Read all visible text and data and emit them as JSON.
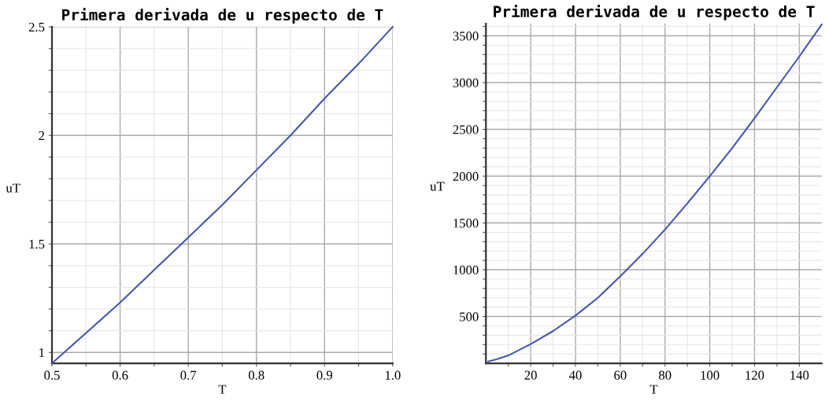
{
  "chart_data": [
    {
      "type": "line",
      "title": "Primera derivada de u respecto de T",
      "xlabel": "T",
      "ylabel": "uT",
      "x": [
        0.5,
        0.55,
        0.6,
        0.65,
        0.7,
        0.75,
        0.8,
        0.85,
        0.9,
        0.95,
        1.0
      ],
      "series": [
        {
          "color": "#4455b0",
          "values": [
            0.95,
            1.09,
            1.23,
            1.38,
            1.53,
            1.68,
            1.84,
            2.0,
            2.17,
            2.33,
            2.5
          ]
        }
      ],
      "xlim": [
        0.5,
        1.0
      ],
      "ylim": [
        0.95,
        2.5
      ],
      "xticks": [
        {
          "value": 0.5,
          "label": "0.5"
        },
        {
          "value": 0.55,
          "label": null
        },
        {
          "value": 0.6,
          "label": "0.6"
        },
        {
          "value": 0.65,
          "label": null
        },
        {
          "value": 0.7,
          "label": "0.7"
        },
        {
          "value": 0.75,
          "label": null
        },
        {
          "value": 0.8,
          "label": "0.8"
        },
        {
          "value": 0.85,
          "label": null
        },
        {
          "value": 0.9,
          "label": "0.9"
        },
        {
          "value": 0.95,
          "label": null
        },
        {
          "value": 1.0,
          "label": "1.0"
        }
      ],
      "yticks": [
        1,
        {
          "value": 1.1,
          "label": null
        },
        {
          "value": 1.2,
          "label": null
        },
        {
          "value": 1.3,
          "label": null
        },
        {
          "value": 1.4,
          "label": null
        },
        1.5,
        {
          "value": 1.6,
          "label": null
        },
        {
          "value": 1.7,
          "label": null
        },
        {
          "value": 1.8,
          "label": null
        },
        {
          "value": 1.9,
          "label": null
        },
        2,
        {
          "value": 2.1,
          "label": null
        },
        {
          "value": 2.2,
          "label": null
        },
        {
          "value": 2.3,
          "label": null
        },
        {
          "value": 2.4,
          "label": null
        },
        2.5
      ],
      "grid": true,
      "line_style": "solid",
      "marker": "none"
    },
    {
      "type": "line",
      "title": "Primera derivada de u respecto de T",
      "xlabel": "T",
      "ylabel": "uT",
      "x": [
        1,
        5,
        10,
        20,
        30,
        40,
        50,
        60,
        70,
        80,
        90,
        100,
        110,
        120,
        130,
        140,
        150
      ],
      "series": [
        {
          "color": "#4455b0",
          "values": [
            20,
            45,
            84,
            205,
            345,
            510,
            700,
            930,
            1170,
            1430,
            1710,
            2000,
            2300,
            2620,
            2950,
            3280,
            3620
          ]
        }
      ],
      "xlim": [
        0,
        150
      ],
      "ylim": [
        0,
        3630
      ],
      "xticks": [
        {
          "value": 10,
          "label": null
        },
        20,
        {
          "value": 30,
          "label": null
        },
        40,
        {
          "value": 50,
          "label": null
        },
        60,
        {
          "value": 70,
          "label": null
        },
        80,
        {
          "value": 90,
          "label": null
        },
        100,
        {
          "value": 110,
          "label": null
        },
        120,
        {
          "value": 130,
          "label": null
        },
        140
      ],
      "yticks": [
        {
          "value": 100,
          "label": null
        },
        {
          "value": 200,
          "label": null
        },
        {
          "value": 300,
          "label": null
        },
        {
          "value": 400,
          "label": null
        },
        500,
        {
          "value": 600,
          "label": null
        },
        {
          "value": 700,
          "label": null
        },
        {
          "value": 800,
          "label": null
        },
        {
          "value": 900,
          "label": null
        },
        1000,
        {
          "value": 1100,
          "label": null
        },
        {
          "value": 1200,
          "label": null
        },
        {
          "value": 1300,
          "label": null
        },
        {
          "value": 1400,
          "label": null
        },
        1500,
        {
          "value": 1600,
          "label": null
        },
        {
          "value": 1700,
          "label": null
        },
        {
          "value": 1800,
          "label": null
        },
        {
          "value": 1900,
          "label": null
        },
        2000,
        {
          "value": 2100,
          "label": null
        },
        {
          "value": 2200,
          "label": null
        },
        {
          "value": 2300,
          "label": null
        },
        {
          "value": 2400,
          "label": null
        },
        2500,
        {
          "value": 2600,
          "label": null
        },
        {
          "value": 2700,
          "label": null
        },
        {
          "value": 2800,
          "label": null
        },
        {
          "value": 2900,
          "label": null
        },
        3000,
        {
          "value": 3100,
          "label": null
        },
        {
          "value": 3200,
          "label": null
        },
        {
          "value": 3300,
          "label": null
        },
        {
          "value": 3400,
          "label": null
        },
        3500,
        {
          "value": 3600,
          "label": null
        }
      ],
      "grid": true,
      "line_style": "solid",
      "marker": "none"
    }
  ]
}
